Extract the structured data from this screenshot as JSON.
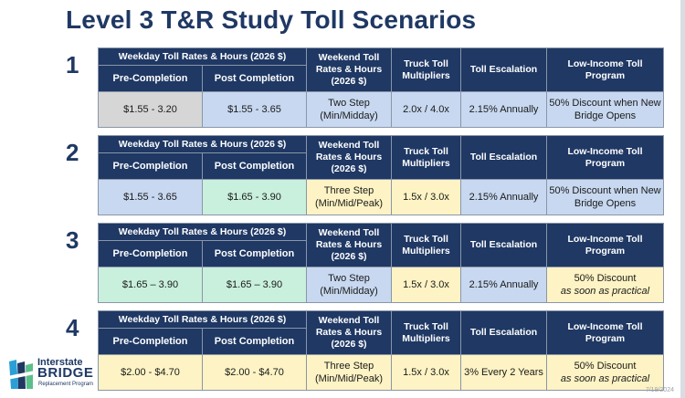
{
  "title": "Level 3 T&R Study Toll Scenarios",
  "headers": {
    "weekday": "Weekday Toll Rates & Hours (2026 $)",
    "pre": "Pre-Completion",
    "post": "Post Completion",
    "weekend": "Weekend Toll Rates & Hours (2026 $)",
    "truck": "Truck Toll Multipliers",
    "escalation": "Toll Escalation",
    "low_income": "Low-Income Toll Program"
  },
  "scenarios": [
    {
      "number": "1",
      "pre": "$1.55 - 3.20",
      "post": "$1.55 - 3.65",
      "weekend": "Two Step (Min/Midday)",
      "truck": "2.0x / 4.0x",
      "escalation": "2.15% Annually",
      "low_income": "50% Discount when New Bridge Opens",
      "low_income_note": ""
    },
    {
      "number": "2",
      "pre": "$1.55 - 3.65",
      "post": "$1.65 - 3.90",
      "weekend": "Three Step (Min/Mid/Peak)",
      "truck": "1.5x / 3.0x",
      "escalation": "2.15% Annually",
      "low_income": "50% Discount when New Bridge Opens",
      "low_income_note": ""
    },
    {
      "number": "3",
      "pre": "$1.65 – 3.90",
      "post": "$1.65 – 3.90",
      "weekend": "Two Step (Min/Midday)",
      "truck": "1.5x / 3.0x",
      "escalation": "2.15% Annually",
      "low_income": "50% Discount",
      "low_income_note": "as soon as practical"
    },
    {
      "number": "4",
      "pre": "$2.00 - $4.70",
      "post": "$2.00 - $4.70",
      "weekend": "Three Step (Min/Mid/Peak)",
      "truck": "1.5x / 3.0x",
      "escalation": "3% Every 2 Years",
      "low_income": "50% Discount",
      "low_income_note": "as soon as practical"
    }
  ],
  "colors": {
    "header": "#1f3864",
    "gray": "#d6d6d6",
    "blue": "#c7d8f0",
    "green": "#c8f0dc",
    "yellow": "#fdf3c4"
  },
  "logo": {
    "line1": "Interstate",
    "line2": "BRIDGE",
    "line3": "Replacement Program",
    "icon": "bridge-logo-icon"
  },
  "date": "7/19/2024"
}
